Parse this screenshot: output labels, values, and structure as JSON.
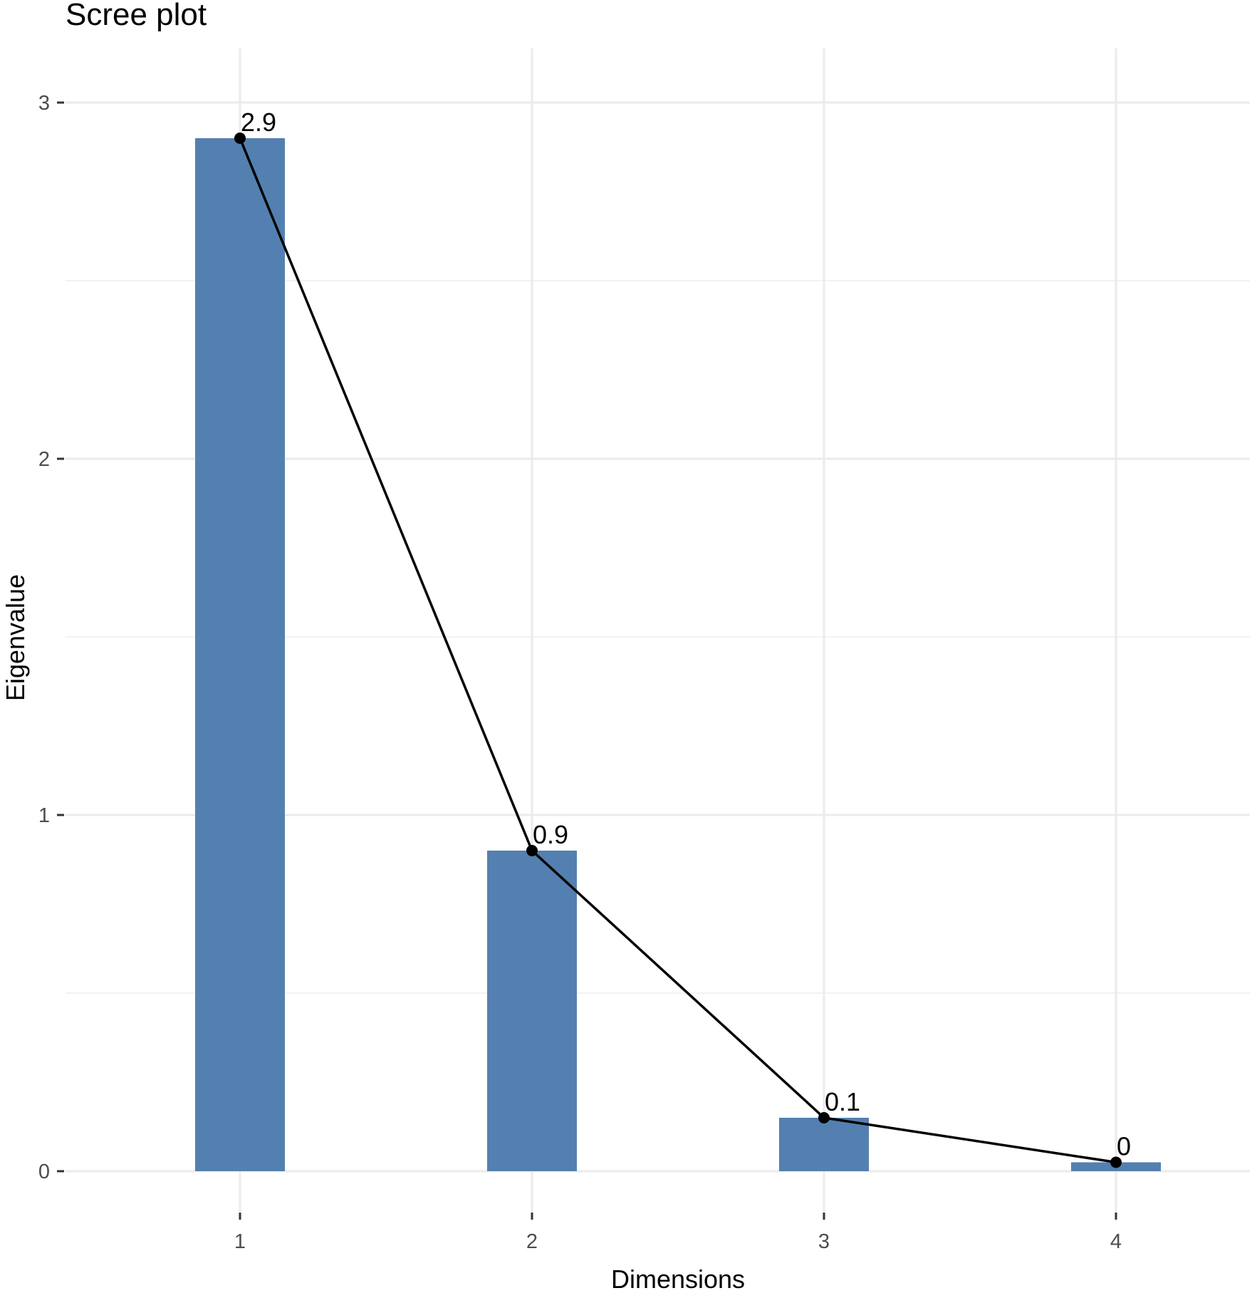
{
  "chart_data": {
    "type": "bar",
    "title": "Scree plot",
    "xlabel": "Dimensions",
    "ylabel": "Eigenvalue",
    "categories": [
      "1",
      "2",
      "3",
      "4"
    ],
    "values": [
      2.9,
      0.9,
      0.15,
      0.025
    ],
    "data_labels": [
      "2.9",
      "0.9",
      "0.1",
      "0"
    ],
    "y_ticks": [
      0,
      1,
      2,
      3
    ],
    "y_tick_labels": [
      "0",
      "1",
      "2",
      "3"
    ],
    "ylim": [
      0,
      3.15
    ],
    "line_overlay": true,
    "grid": true,
    "legend": "none",
    "bar_color": "#5380b0",
    "line_color": "#000000"
  }
}
